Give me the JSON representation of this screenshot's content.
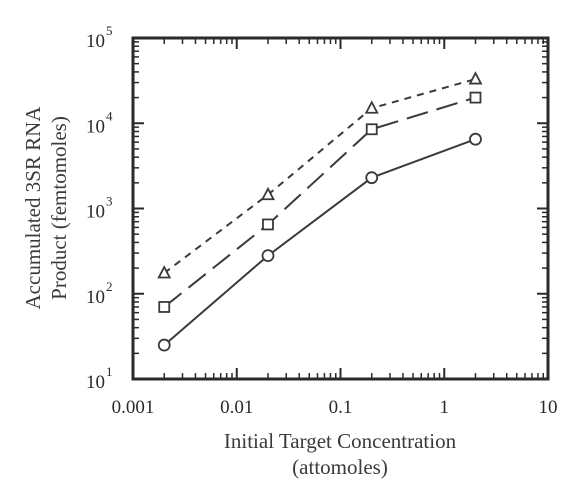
{
  "chart_data": {
    "type": "line",
    "xlabel": [
      "Initial Target Concentration",
      "(attomoles)"
    ],
    "ylabel": [
      "Accumulated 3SR RNA",
      "Product (femtomoles)"
    ],
    "x_scale": "log",
    "y_scale": "log",
    "xlim": [
      0.001,
      10
    ],
    "ylim": [
      10,
      100000
    ],
    "x_ticks": [
      {
        "value": 0.001,
        "label": "0.001"
      },
      {
        "value": 0.01,
        "label": "0.01"
      },
      {
        "value": 0.1,
        "label": "0.1"
      },
      {
        "value": 1,
        "label": "1"
      },
      {
        "value": 10,
        "label": "10"
      }
    ],
    "y_ticks": [
      {
        "value": 10,
        "base": "10",
        "exp": "1"
      },
      {
        "value": 100,
        "base": "10",
        "exp": "2"
      },
      {
        "value": 1000,
        "base": "10",
        "exp": "3"
      },
      {
        "value": 10000,
        "base": "10",
        "exp": "4"
      },
      {
        "value": 100000,
        "base": "10",
        "exp": "5"
      }
    ],
    "grid": false,
    "x": [
      0.002,
      0.02,
      0.2,
      2
    ],
    "series": [
      {
        "marker": "circle",
        "line": "solid",
        "values": [
          25,
          280,
          2300,
          6500
        ]
      },
      {
        "marker": "square",
        "line": "long-dash",
        "values": [
          70,
          650,
          8500,
          20000
        ]
      },
      {
        "marker": "triangle",
        "line": "short-dash",
        "values": [
          175,
          1450,
          15000,
          33000
        ]
      }
    ],
    "colors": {
      "line": "#3a3a3a",
      "axis": "#2a2a2a",
      "background": "#ffffff"
    }
  }
}
